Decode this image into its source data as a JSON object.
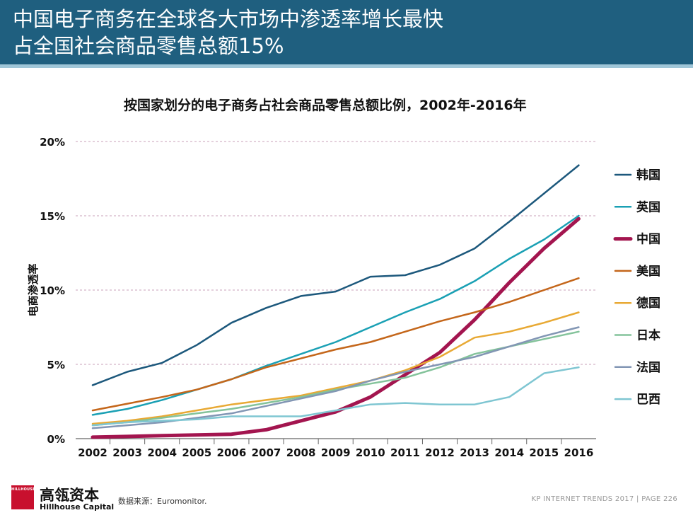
{
  "header": {
    "title_line1": "中国电子商务在全球各大市场中渗透率增长最快",
    "title_line2": "占全国社会商品零售总额15%"
  },
  "footer": {
    "logo_box_text": "HILLHOUSE",
    "brand_cn": "高瓴资本",
    "brand_en": "Hillhouse Capital",
    "source": "数据来源：Euromonitor.",
    "right_text": "KP INTERNET TRENDS 2017  |  PAGE 226"
  },
  "colors": {
    "header_bg": "#1f5f7f",
    "header_stripe": "#9fc6d8",
    "grid": "#c9a0b8",
    "logo_red": "#c8102e"
  },
  "chart_data": {
    "type": "line",
    "title": "按国家划分的电子商务占社会商品零售总额比例，2002年-2016年",
    "xlabel": "",
    "ylabel": "电商渗透率",
    "ylim": [
      0,
      20
    ],
    "yticks": [
      "0%",
      "5%",
      "10%",
      "15%",
      "20%"
    ],
    "ytick_values": [
      0,
      5,
      10,
      15,
      20
    ],
    "grid": "horizontal-dashed",
    "legend_position": "right",
    "x": [
      "2002",
      "2003",
      "2004",
      "2005",
      "2006",
      "2007",
      "2008",
      "2009",
      "2010",
      "2011",
      "2012",
      "2013",
      "2014",
      "2015",
      "2016"
    ],
    "series": [
      {
        "name": "韩国",
        "color": "#1c587c",
        "width": 2.5,
        "values": [
          3.6,
          4.5,
          5.1,
          6.3,
          7.8,
          8.8,
          9.6,
          9.9,
          10.9,
          11.0,
          11.7,
          12.8,
          14.6,
          16.5,
          18.4
        ]
      },
      {
        "name": "英国",
        "color": "#1aa0b4",
        "width": 2.5,
        "values": [
          1.6,
          2.0,
          2.6,
          3.3,
          4.0,
          4.9,
          5.7,
          6.5,
          7.5,
          8.5,
          9.4,
          10.6,
          12.1,
          13.4,
          15.0
        ]
      },
      {
        "name": "中国",
        "color": "#a3154f",
        "width": 5,
        "values": [
          0.1,
          0.15,
          0.2,
          0.25,
          0.3,
          0.6,
          1.2,
          1.8,
          2.8,
          4.3,
          5.8,
          8.0,
          10.5,
          12.8,
          14.8
        ]
      },
      {
        "name": "美国",
        "color": "#c4661a",
        "width": 2.5,
        "values": [
          1.9,
          2.35,
          2.8,
          3.3,
          4.0,
          4.8,
          5.4,
          6.0,
          6.5,
          7.2,
          7.9,
          8.5,
          9.2,
          10.0,
          10.8
        ]
      },
      {
        "name": "德国",
        "color": "#e8a934",
        "width": 2.5,
        "values": [
          1.0,
          1.2,
          1.5,
          1.9,
          2.3,
          2.6,
          2.9,
          3.4,
          3.9,
          4.6,
          5.5,
          6.8,
          7.2,
          7.8,
          8.5
        ]
      },
      {
        "name": "日本",
        "color": "#84c39b",
        "width": 2.5,
        "values": [
          0.9,
          1.1,
          1.4,
          1.7,
          2.0,
          2.4,
          2.8,
          3.3,
          3.7,
          4.1,
          4.8,
          5.7,
          6.2,
          6.7,
          7.2
        ]
      },
      {
        "name": "法国",
        "color": "#8296b4",
        "width": 2.5,
        "values": [
          0.7,
          0.9,
          1.1,
          1.4,
          1.7,
          2.2,
          2.7,
          3.2,
          3.9,
          4.5,
          5.0,
          5.5,
          6.2,
          6.9,
          7.5
        ]
      },
      {
        "name": "巴西",
        "color": "#7fc6d2",
        "width": 2.5,
        "values": [
          0.9,
          1.1,
          1.2,
          1.3,
          1.5,
          1.5,
          1.5,
          1.9,
          2.3,
          2.4,
          2.3,
          2.3,
          2.8,
          4.4,
          4.8
        ]
      }
    ]
  }
}
